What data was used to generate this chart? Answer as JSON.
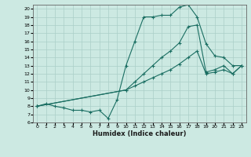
{
  "xlabel": "Humidex (Indice chaleur)",
  "background_color": "#cce9e2",
  "grid_color": "#aacfc8",
  "line_color": "#1a6e62",
  "xlim": [
    -0.5,
    23.5
  ],
  "ylim": [
    6,
    20.5
  ],
  "xticks": [
    0,
    1,
    2,
    3,
    4,
    5,
    6,
    7,
    8,
    9,
    10,
    11,
    12,
    13,
    14,
    15,
    16,
    17,
    18,
    19,
    20,
    21,
    22,
    23
  ],
  "yticks": [
    6,
    7,
    8,
    9,
    10,
    11,
    12,
    13,
    14,
    15,
    16,
    17,
    18,
    19,
    20
  ],
  "line1_x": [
    0,
    1,
    2,
    3,
    4,
    5,
    6,
    7,
    8,
    9,
    10,
    11,
    12,
    13,
    14,
    15,
    16,
    17,
    18,
    19,
    20,
    21,
    22,
    23
  ],
  "line1_y": [
    8.0,
    8.3,
    8.0,
    7.8,
    7.5,
    7.5,
    7.3,
    7.5,
    6.5,
    8.8,
    13.0,
    16.0,
    19.0,
    19.0,
    19.2,
    19.2,
    20.2,
    20.5,
    19.0,
    15.7,
    14.2,
    14.0,
    13.0,
    13.0
  ],
  "line2_x": [
    0,
    10,
    11,
    12,
    13,
    14,
    15,
    16,
    17,
    18,
    19,
    20,
    21,
    22,
    23
  ],
  "line2_y": [
    8.0,
    10.0,
    11.0,
    12.0,
    13.0,
    14.0,
    14.8,
    15.8,
    17.8,
    18.0,
    12.2,
    12.5,
    13.0,
    12.0,
    13.0
  ],
  "line3_x": [
    0,
    10,
    11,
    12,
    13,
    14,
    15,
    16,
    17,
    18,
    19,
    20,
    21,
    22,
    23
  ],
  "line3_y": [
    8.0,
    10.0,
    10.5,
    11.0,
    11.5,
    12.0,
    12.5,
    13.2,
    14.0,
    14.8,
    12.0,
    12.2,
    12.5,
    12.0,
    13.0
  ]
}
